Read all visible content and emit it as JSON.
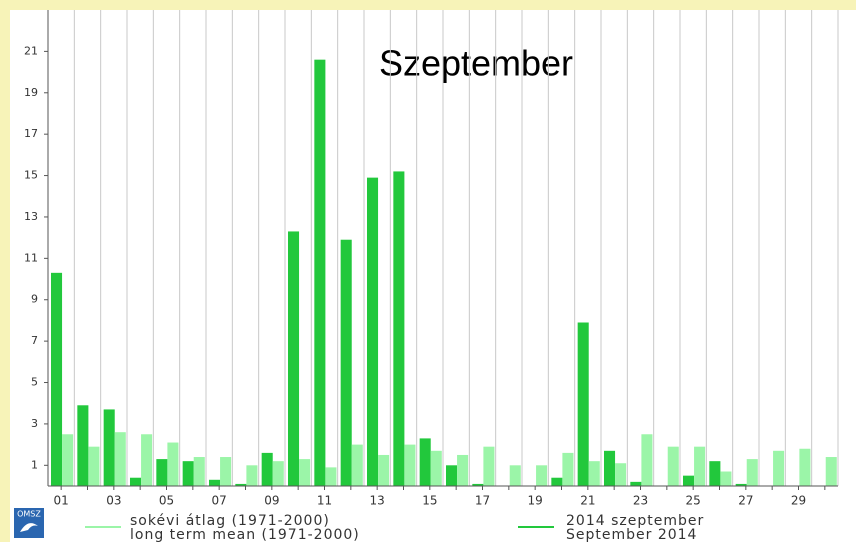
{
  "chart_data": {
    "type": "bar",
    "title": "Szeptember",
    "logo": "OMSZ",
    "categories": [
      "01",
      null,
      "03",
      null,
      "05",
      null,
      "07",
      null,
      "09",
      null,
      "11",
      null,
      "13",
      null,
      "15",
      null,
      "17",
      null,
      "19",
      null,
      "21",
      null,
      "23",
      null,
      "25",
      null,
      "27",
      null,
      "29",
      null
    ],
    "series": [
      {
        "name": "2014 szeptember",
        "name_en": "September 2014",
        "color": "#22c83c",
        "values": [
          10.3,
          3.9,
          3.7,
          0.4,
          1.3,
          1.2,
          0.3,
          0.1,
          1.6,
          12.3,
          20.6,
          11.9,
          14.9,
          15.2,
          2.3,
          1.0,
          0.1,
          0,
          0,
          0.4,
          7.9,
          1.7,
          0.2,
          0,
          0.5,
          1.2,
          0.1,
          0,
          0,
          0
        ]
      },
      {
        "name": "sokévi átlag (1971-2000)",
        "name_en": "long term mean (1971-2000)",
        "color": "#9bf5a8",
        "values": [
          2.5,
          1.9,
          2.6,
          2.5,
          2.1,
          1.4,
          1.4,
          1.0,
          1.2,
          1.3,
          0.9,
          2.0,
          1.5,
          2.0,
          1.7,
          1.5,
          1.9,
          1.0,
          1.0,
          1.6,
          1.2,
          1.1,
          2.5,
          1.9,
          1.9,
          0.7,
          1.3,
          1.7,
          1.8,
          1.4
        ]
      }
    ],
    "ylim": [
      0,
      23
    ],
    "yticks": [
      1,
      3,
      5,
      7,
      9,
      11,
      13,
      15,
      17,
      19,
      21
    ],
    "grid": true
  }
}
